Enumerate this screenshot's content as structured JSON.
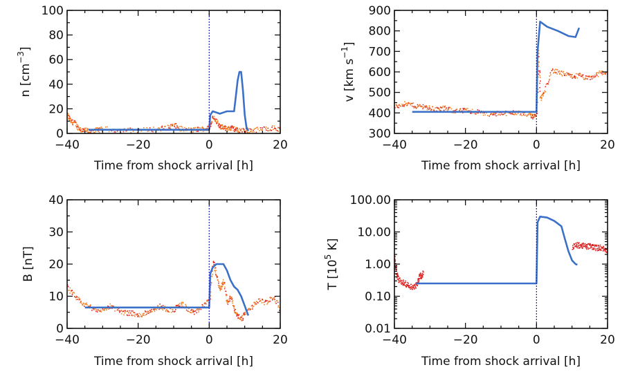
{
  "chart_data": [
    {
      "type": "line",
      "panel": "top-left",
      "ylabel_parts": [
        "n [cm",
        "−3",
        "]"
      ],
      "xlabel": "Time from shock arrival [h]",
      "xlim": [
        -40,
        20
      ],
      "ylim": [
        0,
        100
      ],
      "yscale": "linear",
      "xticks": [
        -40,
        -20,
        0,
        20
      ],
      "xtick_labels": [
        "−40",
        "−20",
        "0",
        "20"
      ],
      "yticks": [
        0,
        20,
        40,
        60,
        80,
        100
      ],
      "ytick_labels": [
        "0",
        "20",
        "40",
        "60",
        "80",
        "100"
      ],
      "shock_line_x": 0,
      "colors": {
        "model": "#3a70c8",
        "observed": "#f08020",
        "observed_alt": "#e02020",
        "shock": "#3030c0"
      },
      "model": {
        "x": [
          -34,
          -20,
          -10,
          0,
          0.3,
          1,
          2,
          3,
          4,
          5,
          6,
          7,
          7.5,
          8,
          8.5,
          9,
          9.5,
          10,
          10.5,
          11
        ],
        "y": [
          3,
          3,
          3,
          3,
          15,
          18,
          17,
          16,
          17,
          18,
          18,
          18,
          30,
          43,
          50,
          50,
          35,
          15,
          5,
          2
        ]
      },
      "observed": {
        "x": [
          -40,
          -39,
          -38,
          -37,
          -36,
          -35,
          -34,
          -32,
          -30,
          -25,
          -20,
          -15,
          -12,
          -10,
          -8,
          -5,
          -3,
          -1,
          0,
          1,
          2,
          3,
          4,
          5,
          6,
          7,
          8,
          10,
          12,
          15,
          18,
          20
        ],
        "y": [
          15,
          10,
          9,
          5,
          3,
          3,
          2,
          3,
          4,
          3,
          3,
          4,
          5,
          7,
          4,
          3,
          4,
          4,
          5,
          14,
          10,
          6,
          5,
          4,
          5,
          4,
          3,
          3,
          3,
          4,
          5,
          3
        ]
      }
    },
    {
      "type": "line",
      "panel": "top-right",
      "ylabel_parts": [
        "v [km s",
        "−1",
        "]"
      ],
      "xlabel": "Time from shock arrival [h]",
      "xlim": [
        -40,
        20
      ],
      "ylim": [
        300,
        900
      ],
      "yscale": "linear",
      "xticks": [
        -40,
        -20,
        0,
        20
      ],
      "xtick_labels": [
        "−40",
        "−20",
        "0",
        "20"
      ],
      "yticks": [
        300,
        400,
        500,
        600,
        700,
        800,
        900
      ],
      "ytick_labels": [
        "300",
        "400",
        "500",
        "600",
        "700",
        "800",
        "900"
      ],
      "shock_line_x": 0,
      "colors": {
        "model": "#3a70c8",
        "observed": "#f08020",
        "observed_alt": "#e02020",
        "shock": "#3030c0"
      },
      "model": {
        "x": [
          -35,
          -20,
          -10,
          0,
          0.3,
          1,
          3,
          6,
          9,
          11,
          12
        ],
        "y": [
          405,
          405,
          405,
          405,
          700,
          845,
          820,
          800,
          775,
          770,
          815
        ]
      },
      "observed": {
        "x": [
          -40,
          -38,
          -36,
          -34,
          -32,
          -30,
          -28,
          -26,
          -24,
          -22,
          -20,
          -18,
          -16,
          -14,
          -12,
          -10,
          -8,
          -6,
          -4,
          -2,
          -1,
          0,
          0.5,
          1,
          2,
          4,
          6,
          8,
          10,
          12,
          14,
          16,
          18,
          20
        ],
        "y": [
          430,
          445,
          445,
          435,
          435,
          425,
          420,
          425,
          415,
          410,
          415,
          410,
          405,
          400,
          395,
          405,
          400,
          405,
          400,
          395,
          385,
          400,
          700,
          470,
          500,
          610,
          600,
          590,
          580,
          585,
          570,
          580,
          600,
          600
        ]
      }
    },
    {
      "type": "line",
      "panel": "bottom-left",
      "ylabel_parts": [
        "B [nT]"
      ],
      "xlabel": "Time from shock arrival [h]",
      "xlim": [
        -40,
        20
      ],
      "ylim": [
        0,
        40
      ],
      "yscale": "linear",
      "xticks": [
        -40,
        -20,
        0,
        20
      ],
      "xtick_labels": [
        "−40",
        "−20",
        "0",
        "20"
      ],
      "yticks": [
        0,
        10,
        20,
        30,
        40
      ],
      "ytick_labels": [
        "0",
        "10",
        "20",
        "30",
        "40"
      ],
      "shock_line_x": 0,
      "colors": {
        "model": "#3a70c8",
        "observed": "#f08020",
        "observed_alt": "#e02020",
        "shock": "#3030c0"
      },
      "model": {
        "x": [
          -35,
          -20,
          -10,
          0,
          0.3,
          1,
          2,
          3,
          4,
          5,
          6,
          7,
          8,
          9,
          10,
          11
        ],
        "y": [
          6.5,
          6.5,
          6.5,
          6.5,
          17,
          19,
          20,
          20,
          20,
          18,
          15,
          13,
          12,
          10,
          7,
          4
        ]
      },
      "observed": {
        "x": [
          -40,
          -38,
          -36,
          -34,
          -32,
          -30,
          -28,
          -26,
          -24,
          -22,
          -20,
          -18,
          -16,
          -14,
          -12,
          -10,
          -8,
          -6,
          -4,
          -2,
          0,
          1,
          2,
          3,
          4,
          5,
          6,
          7,
          8,
          9,
          10,
          12,
          14,
          16,
          18,
          20
        ],
        "y": [
          13,
          10,
          8,
          7,
          6,
          6,
          7,
          6,
          5,
          5,
          4,
          5,
          6,
          7,
          6,
          6,
          8,
          6,
          5,
          7,
          9,
          21,
          16,
          12,
          15,
          8,
          10,
          6,
          4,
          3,
          5,
          7,
          9,
          8,
          10,
          6
        ]
      }
    },
    {
      "type": "line",
      "panel": "bottom-right",
      "ylabel_parts": [
        "T [10",
        "5",
        " K]"
      ],
      "xlabel": "Time from shock arrival [h]",
      "xlim": [
        -40,
        20
      ],
      "ylim": [
        0.01,
        100
      ],
      "yscale": "log",
      "xticks": [
        -40,
        -20,
        0,
        20
      ],
      "xtick_labels": [
        "−40",
        "−20",
        "0",
        "20"
      ],
      "yticks": [
        0.01,
        0.1,
        1,
        10,
        100
      ],
      "ytick_labels": [
        "0.01",
        "0.10",
        "1.00",
        "10.00",
        "100.00"
      ],
      "shock_line_x": 0,
      "colors": {
        "model": "#3a70c8",
        "observed": "#e02020",
        "shock": "#3030c0"
      },
      "model": {
        "x": [
          -34,
          -20,
          -10,
          0,
          0.3,
          1,
          3,
          5,
          7,
          8,
          9,
          10,
          11,
          11.5
        ],
        "y": [
          0.25,
          0.25,
          0.25,
          0.25,
          20,
          30,
          28,
          22,
          15,
          6,
          2.5,
          1.3,
          1.0,
          0.95
        ]
      },
      "observed": {
        "segments": [
          {
            "x": [
              -40,
              -39.5,
              -39,
              -38,
              -37,
              -36,
              -35,
              -34,
              -33.5,
              -33,
              -32.5,
              -32
            ],
            "y": [
              1.6,
              0.5,
              0.35,
              0.28,
              0.25,
              0.22,
              0.2,
              0.22,
              0.3,
              0.5,
              0.4,
              0.6
            ]
          },
          {
            "x": [
              10,
              11,
              12,
              13,
              14,
              15,
              16,
              17,
              18,
              19,
              20
            ],
            "y": [
              3.5,
              4.0,
              4.0,
              3.8,
              3.6,
              3.8,
              3.5,
              3.3,
              3.4,
              3.0,
              2.8
            ]
          }
        ]
      }
    }
  ]
}
